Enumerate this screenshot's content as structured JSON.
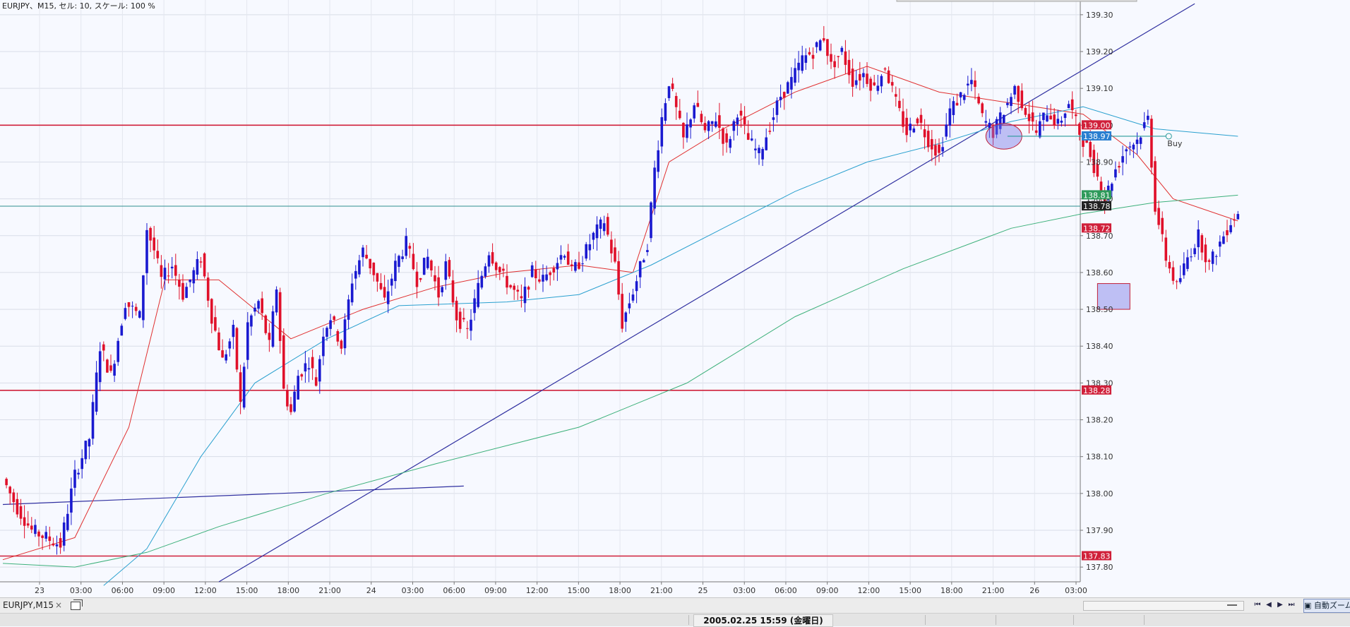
{
  "chart_title": "EURJPY、M15, セル: 10, スケール: 100 %",
  "chart_data": {
    "type": "candlestick",
    "symbol": "EURJPY",
    "timeframe": "M15",
    "title": "EURJPY、M15, セル: 10, スケール: 100 %",
    "ylim": [
      137.76,
      139.34
    ],
    "y_ticks": [
      137.8,
      137.9,
      138.0,
      138.1,
      138.2,
      138.3,
      138.4,
      138.5,
      138.6,
      138.7,
      138.8,
      138.9,
      139.0,
      139.1,
      139.2,
      139.3
    ],
    "x_ticks": [
      "23",
      "03:00",
      "06:00",
      "09:00",
      "12:00",
      "15:00",
      "18:00",
      "21:00",
      "24",
      "03:00",
      "06:00",
      "09:00",
      "12:00",
      "15:00",
      "18:00",
      "21:00",
      "25",
      "03:00",
      "06:00",
      "09:00",
      "12:00",
      "15:00",
      "18:00",
      "21:00",
      "26",
      "03:00"
    ],
    "candle_close_path": [
      [
        0,
        138.04
      ],
      [
        4,
        137.96
      ],
      [
        8,
        137.9
      ],
      [
        12,
        137.88
      ],
      [
        16,
        137.86
      ],
      [
        20,
        138.05
      ],
      [
        24,
        138.15
      ],
      [
        27,
        138.4
      ],
      [
        30,
        138.32
      ],
      [
        34,
        138.52
      ],
      [
        38,
        138.48
      ],
      [
        40,
        138.72
      ],
      [
        42,
        138.66
      ],
      [
        44,
        138.58
      ],
      [
        47,
        138.62
      ],
      [
        50,
        138.54
      ],
      [
        53,
        138.6
      ],
      [
        55,
        138.64
      ],
      [
        58,
        138.48
      ],
      [
        61,
        138.36
      ],
      [
        64,
        138.44
      ],
      [
        66,
        138.24
      ],
      [
        68,
        138.46
      ],
      [
        71,
        138.52
      ],
      [
        74,
        138.4
      ],
      [
        76,
        138.56
      ],
      [
        78,
        138.28
      ],
      [
        80,
        138.22
      ],
      [
        82,
        138.32
      ],
      [
        85,
        138.36
      ],
      [
        87,
        138.3
      ],
      [
        89,
        138.44
      ],
      [
        91,
        138.48
      ],
      [
        94,
        138.4
      ],
      [
        97,
        138.58
      ],
      [
        100,
        138.66
      ],
      [
        103,
        138.6
      ],
      [
        106,
        138.52
      ],
      [
        109,
        138.62
      ],
      [
        112,
        138.68
      ],
      [
        115,
        138.58
      ],
      [
        118,
        138.64
      ],
      [
        121,
        138.54
      ],
      [
        123,
        138.62
      ],
      [
        126,
        138.48
      ],
      [
        129,
        138.44
      ],
      [
        132,
        138.56
      ],
      [
        135,
        138.66
      ],
      [
        138,
        138.6
      ],
      [
        141,
        138.56
      ],
      [
        144,
        138.52
      ],
      [
        147,
        138.6
      ],
      [
        150,
        138.58
      ],
      [
        153,
        138.62
      ],
      [
        156,
        138.66
      ],
      [
        158,
        138.6
      ],
      [
        161,
        138.64
      ],
      [
        164,
        138.7
      ],
      [
        167,
        138.74
      ],
      [
        170,
        138.62
      ],
      [
        172,
        138.46
      ],
      [
        174,
        138.52
      ],
      [
        176,
        138.58
      ],
      [
        179,
        138.68
      ],
      [
        181,
        138.88
      ],
      [
        183,
        139.02
      ],
      [
        185,
        139.12
      ],
      [
        187,
        139.04
      ],
      [
        189,
        138.96
      ],
      [
        192,
        139.06
      ],
      [
        195,
        138.98
      ],
      [
        198,
        139.02
      ],
      [
        201,
        138.94
      ],
      [
        204,
        139.04
      ],
      [
        207,
        138.96
      ],
      [
        210,
        138.92
      ],
      [
        213,
        139.0
      ],
      [
        216,
        139.08
      ],
      [
        219,
        139.12
      ],
      [
        222,
        139.18
      ],
      [
        225,
        139.2
      ],
      [
        228,
        139.24
      ],
      [
        230,
        139.16
      ],
      [
        233,
        139.2
      ],
      [
        236,
        139.12
      ],
      [
        239,
        139.14
      ],
      [
        242,
        139.1
      ],
      [
        245,
        139.16
      ],
      [
        248,
        139.06
      ],
      [
        251,
        138.98
      ],
      [
        254,
        139.02
      ],
      [
        257,
        138.96
      ],
      [
        260,
        138.92
      ],
      [
        263,
        139.04
      ],
      [
        266,
        139.08
      ],
      [
        269,
        139.12
      ],
      [
        272,
        139.02
      ],
      [
        275,
        138.98
      ],
      [
        278,
        139.04
      ],
      [
        281,
        139.1
      ],
      [
        284,
        139.04
      ],
      [
        287,
        138.98
      ],
      [
        290,
        139.04
      ],
      [
        293,
        139.0
      ],
      [
        296,
        139.06
      ],
      [
        299,
        138.98
      ],
      [
        302,
        138.92
      ],
      [
        304,
        138.86
      ],
      [
        306,
        138.8
      ],
      [
        309,
        138.88
      ],
      [
        312,
        138.94
      ],
      [
        315,
        138.96
      ],
      [
        318,
        139.02
      ],
      [
        320,
        138.78
      ],
      [
        323,
        138.64
      ],
      [
        326,
        138.56
      ],
      [
        329,
        138.64
      ],
      [
        332,
        138.7
      ],
      [
        335,
        138.62
      ],
      [
        338,
        138.68
      ],
      [
        341,
        138.74
      ],
      [
        343,
        138.76
      ]
    ],
    "moving_averages": [
      {
        "color": "#e03030",
        "points": [
          [
            0,
            137.82
          ],
          [
            20,
            137.88
          ],
          [
            35,
            138.18
          ],
          [
            45,
            138.58
          ],
          [
            60,
            138.58
          ],
          [
            80,
            138.42
          ],
          [
            100,
            138.5
          ],
          [
            120,
            138.56
          ],
          [
            140,
            138.6
          ],
          [
            160,
            138.62
          ],
          [
            175,
            138.6
          ],
          [
            185,
            138.9
          ],
          [
            200,
            138.99
          ],
          [
            220,
            139.09
          ],
          [
            240,
            139.16
          ],
          [
            260,
            139.09
          ],
          [
            280,
            139.06
          ],
          [
            300,
            139.03
          ],
          [
            315,
            138.92
          ],
          [
            325,
            138.8
          ],
          [
            343,
            138.74
          ]
        ]
      },
      {
        "color": "#2aa0cf",
        "points": [
          [
            28,
            137.75
          ],
          [
            40,
            137.85
          ],
          [
            55,
            138.1
          ],
          [
            70,
            138.3
          ],
          [
            90,
            138.42
          ],
          [
            110,
            138.51
          ],
          [
            140,
            138.52
          ],
          [
            160,
            138.54
          ],
          [
            180,
            138.62
          ],
          [
            200,
            138.72
          ],
          [
            220,
            138.82
          ],
          [
            240,
            138.9
          ],
          [
            260,
            138.95
          ],
          [
            280,
            139.01
          ],
          [
            300,
            139.05
          ],
          [
            320,
            138.99
          ],
          [
            343,
            138.97
          ]
        ]
      },
      {
        "color": "#3cb07a",
        "points": [
          [
            0,
            137.81
          ],
          [
            20,
            137.8
          ],
          [
            40,
            137.84
          ],
          [
            60,
            137.91
          ],
          [
            90,
            138.0
          ],
          [
            120,
            138.08
          ],
          [
            160,
            138.18
          ],
          [
            190,
            138.3
          ],
          [
            220,
            138.48
          ],
          [
            250,
            138.61
          ],
          [
            280,
            138.72
          ],
          [
            300,
            138.76
          ],
          [
            320,
            138.79
          ],
          [
            343,
            138.81
          ]
        ]
      }
    ],
    "horizontal_levels": [
      {
        "value": 139.0,
        "label": "139.00",
        "color": "#d0203a"
      },
      {
        "value": 138.28,
        "label": "138.28",
        "color": "#d0203a"
      },
      {
        "value": 137.83,
        "label": "137.83",
        "color": "#d0203a"
      },
      {
        "value": 138.78,
        "label": "138.78",
        "color": "#2f8f8f"
      },
      {
        "value": 138.97,
        "label": "138.97",
        "color": "#2a9a9a"
      }
    ],
    "price_tags": [
      {
        "value": 139.0,
        "label": "139.00",
        "bg": "#d0203a"
      },
      {
        "value": 138.97,
        "label": "138.97",
        "bg": "#2a7fd0"
      },
      {
        "value": 138.81,
        "label": "138.81",
        "bg": "#2e9a5a"
      },
      {
        "value": 138.78,
        "label": "138.78",
        "bg": "#222222"
      },
      {
        "value": 138.72,
        "label": "138.72",
        "bg": "#d0203a"
      },
      {
        "value": 138.28,
        "label": "138.28",
        "bg": "#d0203a"
      },
      {
        "value": 137.83,
        "label": "137.83",
        "bg": "#d0203a"
      }
    ],
    "trendlines": [
      {
        "from": [
          0,
          137.97
        ],
        "to": [
          128,
          138.02
        ],
        "color": "#3030a0"
      },
      {
        "from": [
          60,
          137.76
        ],
        "to": [
          331,
          139.33
        ],
        "color": "#3030a0"
      }
    ],
    "annotations": [
      {
        "type": "ellipse",
        "center": [
          278,
          138.97
        ],
        "rx": 5,
        "ry": 0.035
      },
      {
        "type": "rectangle",
        "from": [
          304,
          138.57
        ],
        "to": [
          313,
          138.5
        ]
      },
      {
        "type": "order",
        "label": "Buy",
        "value": 138.97,
        "from": [
          279,
          138.97
        ],
        "to": [
          323,
          138.97
        ],
        "color": "#2a9a9a"
      }
    ],
    "last_candle_index": 343
  },
  "tabbar": {
    "symbol_tab": "EURJPY,M15",
    "close": "×",
    "zoom_button": "自動ズーム"
  },
  "statusbar": {
    "datetime": "2005.02.25 15:59 (金曜日)"
  }
}
